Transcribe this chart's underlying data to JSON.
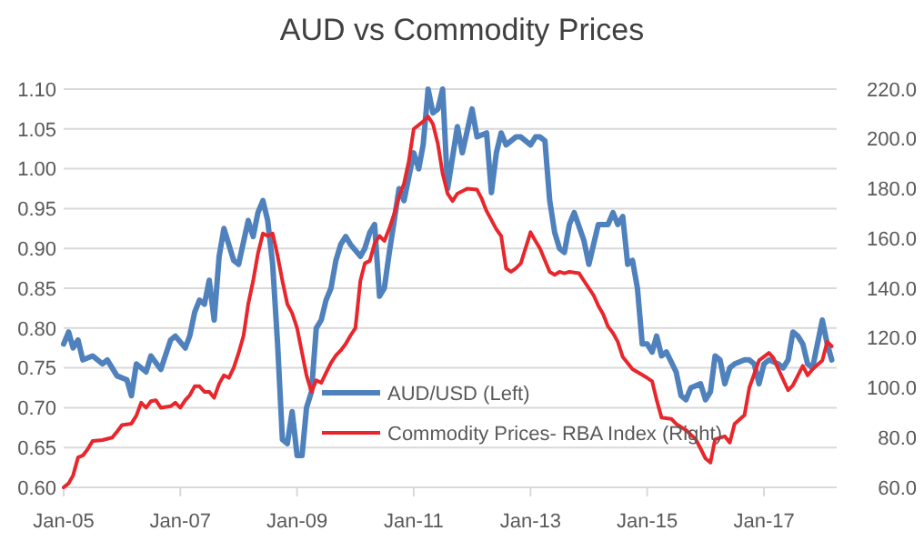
{
  "chart_data": {
    "type": "line",
    "title": "AUD vs Commodity Prices",
    "xlim": [
      "2005-01",
      "2018-04"
    ],
    "xticks": [
      {
        "value": "2005-01",
        "label": "Jan-05"
      },
      {
        "value": "2007-01",
        "label": "Jan-07"
      },
      {
        "value": "2009-01",
        "label": "Jan-09"
      },
      {
        "value": "2011-01",
        "label": "Jan-11"
      },
      {
        "value": "2013-01",
        "label": "Jan-13"
      },
      {
        "value": "2015-01",
        "label": "Jan-15"
      },
      {
        "value": "2017-01",
        "label": "Jan-17"
      }
    ],
    "ylim": [
      0.6,
      1.1
    ],
    "yticks": [
      {
        "value": 0.6,
        "label": "0.60"
      },
      {
        "value": 0.65,
        "label": "0.65"
      },
      {
        "value": 0.7,
        "label": "0.70"
      },
      {
        "value": 0.75,
        "label": "0.75"
      },
      {
        "value": 0.8,
        "label": "0.80"
      },
      {
        "value": 0.85,
        "label": "0.85"
      },
      {
        "value": 0.9,
        "label": "0.90"
      },
      {
        "value": 0.95,
        "label": "0.95"
      },
      {
        "value": 1.0,
        "label": "1.00"
      },
      {
        "value": 1.05,
        "label": "1.05"
      },
      {
        "value": 1.1,
        "label": "1.10"
      }
    ],
    "y2lim": [
      60,
      220
    ],
    "y2ticks": [
      {
        "value": 60,
        "label": "60.0"
      },
      {
        "value": 80,
        "label": "80.0"
      },
      {
        "value": 100,
        "label": "100.0"
      },
      {
        "value": 120,
        "label": "120.0"
      },
      {
        "value": 140,
        "label": "140.0"
      },
      {
        "value": 160,
        "label": "160.0"
      },
      {
        "value": 180,
        "label": "180.0"
      },
      {
        "value": 200,
        "label": "200.0"
      },
      {
        "value": 220,
        "label": "220.0"
      }
    ],
    "grid": "y",
    "legend": "bottom",
    "line_style": "solid",
    "series": [
      {
        "name": "AUD/USD (Left)",
        "color": "#4f81bd",
        "axis": "y",
        "x": [
          "2005-01",
          "2005-02",
          "2005-03",
          "2005-04",
          "2005-05",
          "2005-07",
          "2005-09",
          "2005-10",
          "2005-12",
          "2006-02",
          "2006-03",
          "2006-04",
          "2006-06",
          "2006-07",
          "2006-09",
          "2006-11",
          "2006-12",
          "2007-02",
          "2007-03",
          "2007-04",
          "2007-05",
          "2007-06",
          "2007-07",
          "2007-08",
          "2007-09",
          "2007-10",
          "2007-12",
          "2008-01",
          "2008-03",
          "2008-04",
          "2008-05",
          "2008-06",
          "2008-07",
          "2008-08",
          "2008-09",
          "2008-10",
          "2008-11",
          "2008-12",
          "2009-01",
          "2009-02",
          "2009-03",
          "2009-04",
          "2009-05",
          "2009-06",
          "2009-07",
          "2009-08",
          "2009-09",
          "2009-10",
          "2009-11",
          "2009-12",
          "2010-02",
          "2010-03",
          "2010-04",
          "2010-05",
          "2010-06",
          "2010-07",
          "2010-08",
          "2010-09",
          "2010-10",
          "2010-11",
          "2011-01",
          "2011-02",
          "2011-03",
          "2011-04",
          "2011-05",
          "2011-06",
          "2011-07",
          "2011-08",
          "2011-10",
          "2011-11",
          "2012-01",
          "2012-02",
          "2012-04",
          "2012-05",
          "2012-06",
          "2012-07",
          "2012-08",
          "2012-10",
          "2012-11",
          "2013-01",
          "2013-02",
          "2013-03",
          "2013-04",
          "2013-05",
          "2013-06",
          "2013-07",
          "2013-08",
          "2013-09",
          "2013-10",
          "2013-12",
          "2014-01",
          "2014-03",
          "2014-05",
          "2014-06",
          "2014-07",
          "2014-08",
          "2014-09",
          "2014-10",
          "2014-11",
          "2014-12",
          "2015-01",
          "2015-02",
          "2015-03",
          "2015-04",
          "2015-05",
          "2015-07",
          "2015-08",
          "2015-09",
          "2015-10",
          "2015-12",
          "2016-01",
          "2016-02",
          "2016-03",
          "2016-04",
          "2016-05",
          "2016-06",
          "2016-07",
          "2016-09",
          "2016-10",
          "2016-11",
          "2016-12",
          "2017-01",
          "2017-02",
          "2017-04",
          "2017-05",
          "2017-06",
          "2017-07",
          "2017-08",
          "2017-09",
          "2017-10",
          "2017-11",
          "2018-01",
          "2018-02",
          "2018-03"
        ],
        "values": [
          0.78,
          0.795,
          0.775,
          0.785,
          0.76,
          0.765,
          0.755,
          0.76,
          0.74,
          0.735,
          0.715,
          0.755,
          0.745,
          0.765,
          0.748,
          0.785,
          0.79,
          0.775,
          0.79,
          0.82,
          0.835,
          0.83,
          0.86,
          0.81,
          0.89,
          0.925,
          0.885,
          0.88,
          0.935,
          0.915,
          0.945,
          0.96,
          0.935,
          0.88,
          0.78,
          0.66,
          0.655,
          0.695,
          0.64,
          0.64,
          0.7,
          0.72,
          0.8,
          0.81,
          0.835,
          0.85,
          0.885,
          0.905,
          0.915,
          0.905,
          0.89,
          0.9,
          0.92,
          0.93,
          0.84,
          0.85,
          0.895,
          0.935,
          0.975,
          0.96,
          1.02,
          1.0,
          1.03,
          1.1,
          1.07,
          1.075,
          1.1,
          0.975,
          1.053,
          1.02,
          1.075,
          1.04,
          1.045,
          0.97,
          1.02,
          1.045,
          1.03,
          1.04,
          1.04,
          1.03,
          1.04,
          1.04,
          1.035,
          0.96,
          0.92,
          0.9,
          0.895,
          0.93,
          0.945,
          0.91,
          0.88,
          0.93,
          0.93,
          0.945,
          0.93,
          0.94,
          0.88,
          0.885,
          0.85,
          0.78,
          0.78,
          0.77,
          0.79,
          0.765,
          0.77,
          0.745,
          0.715,
          0.71,
          0.725,
          0.73,
          0.71,
          0.72,
          0.765,
          0.76,
          0.73,
          0.75,
          0.755,
          0.76,
          0.76,
          0.755,
          0.73,
          0.755,
          0.76,
          0.755,
          0.75,
          0.76,
          0.795,
          0.79,
          0.78,
          0.755,
          0.75,
          0.81,
          0.78,
          0.76
        ]
      },
      {
        "name": "Commodity Prices- RBA Index (Right)",
        "color": "#e8262b",
        "axis": "y2",
        "x": [
          "2005-01",
          "2005-02",
          "2005-03",
          "2005-04",
          "2005-05",
          "2005-06",
          "2005-07",
          "2005-09",
          "2005-11",
          "2005-12",
          "2006-01",
          "2006-03",
          "2006-04",
          "2006-05",
          "2006-06",
          "2006-07",
          "2006-08",
          "2006-09",
          "2006-11",
          "2006-12",
          "2007-01",
          "2007-02",
          "2007-03",
          "2007-04",
          "2007-05",
          "2007-06",
          "2007-07",
          "2007-08",
          "2007-09",
          "2007-10",
          "2007-11",
          "2007-12",
          "2008-01",
          "2008-02",
          "2008-03",
          "2008-04",
          "2008-05",
          "2008-06",
          "2008-07",
          "2008-08",
          "2008-09",
          "2008-10",
          "2008-11",
          "2008-12",
          "2009-01",
          "2009-02",
          "2009-03",
          "2009-04",
          "2009-05",
          "2009-06",
          "2009-07",
          "2009-08",
          "2009-09",
          "2009-10",
          "2009-11",
          "2009-12",
          "2010-01",
          "2010-02",
          "2010-03",
          "2010-04",
          "2010-05",
          "2010-06",
          "2010-07",
          "2010-08",
          "2010-09",
          "2010-10",
          "2010-11",
          "2010-12",
          "2011-01",
          "2011-03",
          "2011-04",
          "2011-05",
          "2011-06",
          "2011-07",
          "2011-08",
          "2011-09",
          "2011-10",
          "2011-11",
          "2011-12",
          "2012-02",
          "2012-03",
          "2012-04",
          "2012-06",
          "2012-07",
          "2012-08",
          "2012-09",
          "2012-10",
          "2012-11",
          "2013-01",
          "2013-02",
          "2013-03",
          "2013-05",
          "2013-06",
          "2013-07",
          "2013-08",
          "2013-09",
          "2013-11",
          "2013-12",
          "2014-02",
          "2014-03",
          "2014-04",
          "2014-05",
          "2014-06",
          "2014-07",
          "2014-08",
          "2014-10",
          "2015-01",
          "2015-02",
          "2015-03",
          "2015-04",
          "2015-06",
          "2015-07",
          "2015-08",
          "2015-09",
          "2015-11",
          "2015-12",
          "2016-01",
          "2016-02",
          "2016-03",
          "2016-05",
          "2016-06",
          "2016-07",
          "2016-09",
          "2016-10",
          "2016-12",
          "2017-02",
          "2017-03",
          "2017-04",
          "2017-06",
          "2017-07",
          "2017-09",
          "2017-10",
          "2017-11",
          "2018-01",
          "2018-02",
          "2018-03"
        ],
        "values": [
          60,
          61.6,
          64.8,
          72,
          72.8,
          75.4,
          78.6,
          79,
          80,
          82.4,
          85,
          85.6,
          88.8,
          94,
          92,
          94.6,
          95,
          92,
          92.6,
          94,
          92,
          95,
          97,
          100.6,
          100.6,
          98.4,
          98.4,
          96,
          101.6,
          105,
          104,
          108,
          114,
          121,
          133.6,
          143,
          154,
          162,
          161,
          162,
          153,
          143,
          133.6,
          130,
          124,
          114,
          105,
          98.4,
          103,
          102,
          106,
          110,
          113,
          115,
          117.6,
          121,
          124,
          143,
          150,
          151,
          158,
          161,
          159,
          164,
          170,
          177,
          182,
          191,
          204,
          207,
          209,
          206,
          198,
          186,
          178,
          175,
          178,
          179,
          180,
          179.6,
          176,
          171,
          163.7,
          161,
          148,
          146.6,
          148,
          150,
          162.5,
          159,
          156,
          146.6,
          145.4,
          146.6,
          146,
          146.6,
          146,
          143,
          137,
          133,
          129.5,
          124.6,
          122,
          118.5,
          112.4,
          107.5,
          104,
          102.6,
          95.2,
          88,
          87.5,
          85.5,
          84.2,
          83,
          79.3,
          75.6,
          71.6,
          70,
          79.3,
          80.5,
          78,
          85.5,
          89,
          100,
          111,
          114,
          112,
          107.5,
          99,
          101,
          108.8,
          105,
          107.5,
          111,
          118.5,
          116.7
        ]
      }
    ]
  }
}
